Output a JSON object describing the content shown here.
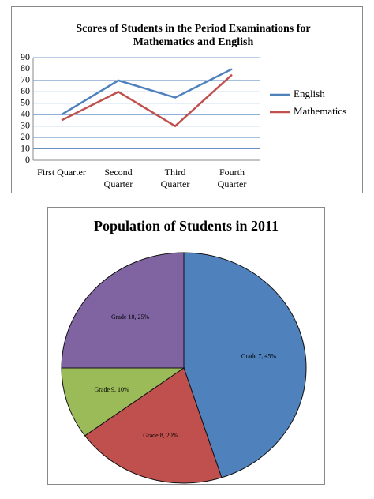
{
  "chart_data": [
    {
      "type": "line",
      "title": "Scores of Students in the Period Examinations for Mathematics and English",
      "categories": [
        "First Quarter",
        "Second Quarter",
        "Third Quarter",
        "Fourth Quarter"
      ],
      "series": [
        {
          "name": "English",
          "color": "#4f81bd",
          "values": [
            40,
            70,
            55,
            80
          ]
        },
        {
          "name": "Mathematics",
          "color": "#c0504d",
          "values": [
            35,
            60,
            30,
            75
          ]
        }
      ],
      "ylim": [
        0,
        90
      ],
      "yticks": [
        0,
        10,
        20,
        30,
        40,
        50,
        60,
        70,
        80,
        90
      ],
      "grid": true,
      "legend": "right"
    },
    {
      "type": "pie",
      "title": "Population of Students in 2011",
      "categories": [
        "Grade 7, 45%",
        "Grade 8, 20%",
        "Grade 9, 10%",
        "Grade 10, 25%"
      ],
      "values": [
        45,
        20,
        10,
        25
      ],
      "colors": [
        "#4f81bd",
        "#c0504d",
        "#9bbb59",
        "#8064a2"
      ]
    }
  ]
}
